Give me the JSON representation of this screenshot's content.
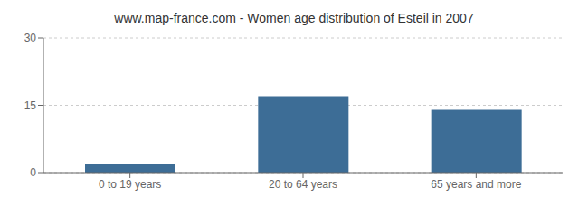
{
  "chart_data": {
    "type": "bar",
    "title": "www.map-france.com - Women age distribution of Esteil in 2007",
    "categories": [
      "0 to 19 years",
      "20 to 64 years",
      "65 years and more"
    ],
    "values": [
      2,
      17,
      14
    ],
    "color": "#3d6d96",
    "ylim": [
      0,
      30
    ],
    "yticks": [
      0,
      15,
      30
    ],
    "grid": true
  }
}
